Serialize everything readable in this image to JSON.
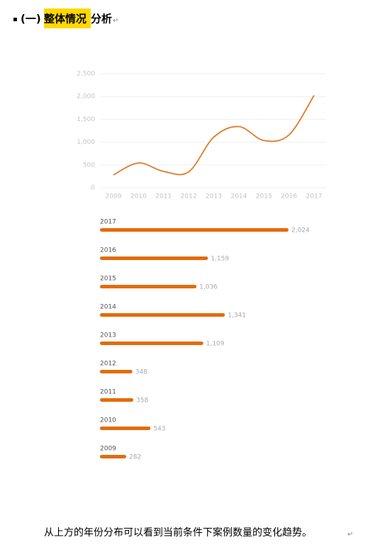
{
  "heading": {
    "bullet": "▪",
    "number": "(一)",
    "highlight": "整体情况",
    "rest": "分析",
    "mark": "↵"
  },
  "charts": [
    {
      "type": "line",
      "categories": [
        "2009",
        "2010",
        "2011",
        "2012",
        "2013",
        "2014",
        "2015",
        "2016",
        "2017"
      ],
      "values": [
        282,
        543,
        358,
        348,
        1109,
        1341,
        1036,
        1159,
        2024
      ],
      "color": "#e07b2a",
      "ylim": [
        0,
        2500
      ],
      "yticks": [
        0,
        500,
        {
          "value": 1000,
          "label": "1,000"
        },
        {
          "value": 1500,
          "label": "1,500"
        },
        {
          "value": 2000,
          "label": "2,000"
        },
        {
          "value": 2500,
          "label": "2,500"
        }
      ],
      "grid": true
    },
    {
      "type": "hbar",
      "categories": [
        "2017",
        "2016",
        "2015",
        "2014",
        "2013",
        "2012",
        "2011",
        "2010",
        "2009"
      ],
      "values": [
        2024,
        1159,
        1036,
        1341,
        1109,
        348,
        358,
        543,
        282
      ],
      "value_labels": [
        "2,024",
        "1,159",
        "1,036",
        "1,341",
        "1,109",
        "348",
        "358",
        "543",
        "282"
      ],
      "color": "#e36c09"
    }
  ],
  "footer": {
    "text": "从上方的年份分布可以看到当前条件下案例数量的变化趋势。",
    "mark": "↵"
  }
}
